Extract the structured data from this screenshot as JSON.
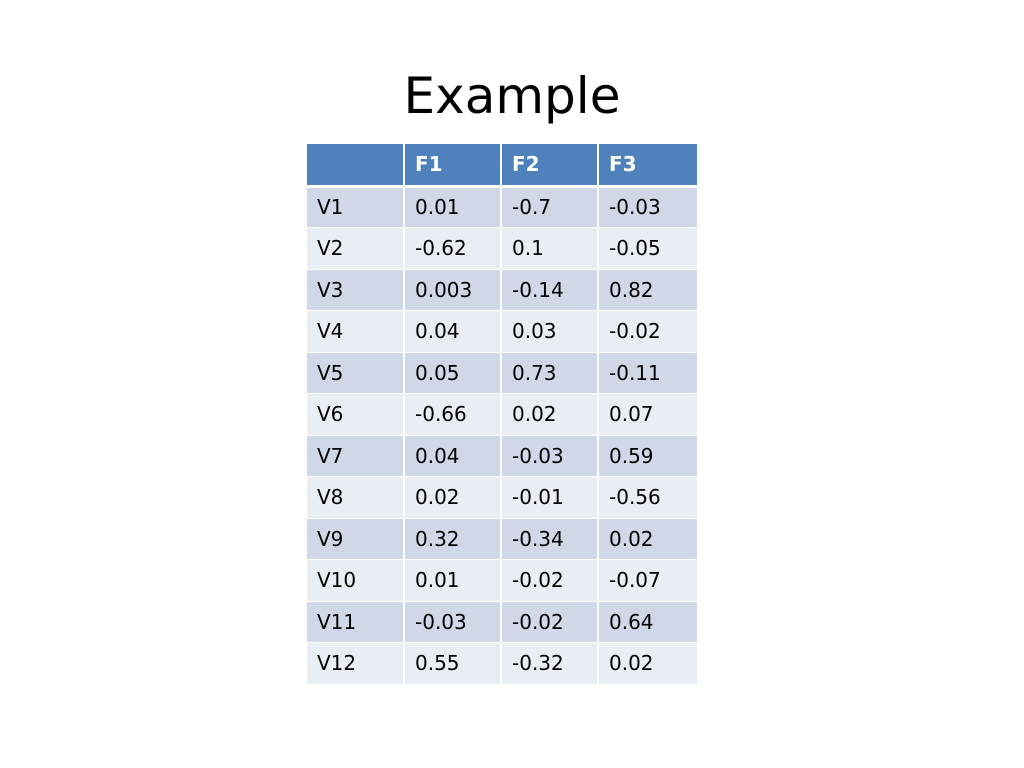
{
  "slide": {
    "title": "Example"
  },
  "table": {
    "headers": [
      "",
      "F1",
      "F2",
      "F3"
    ],
    "rows": [
      [
        "V1",
        "0.01",
        "-0.7",
        "-0.03"
      ],
      [
        "V2",
        "-0.62",
        "0.1",
        "-0.05"
      ],
      [
        "V3",
        "0.003",
        "-0.14",
        "0.82"
      ],
      [
        "V4",
        "0.04",
        "0.03",
        "-0.02"
      ],
      [
        "V5",
        "0.05",
        "0.73",
        "-0.11"
      ],
      [
        "V6",
        "-0.66",
        "0.02",
        "0.07"
      ],
      [
        "V7",
        "0.04",
        "-0.03",
        "0.59"
      ],
      [
        "V8",
        "0.02",
        "-0.01",
        "-0.56"
      ],
      [
        "V9",
        "0.32",
        "-0.34",
        "0.02"
      ],
      [
        "V10",
        "0.01",
        "-0.02",
        "-0.07"
      ],
      [
        "V11",
        "-0.03",
        "-0.02",
        "0.64"
      ],
      [
        "V12",
        "0.55",
        "-0.32",
        "0.02"
      ]
    ]
  },
  "colors": {
    "header_bg": "#4f81bd",
    "row_band_dark": "#d0d8e8",
    "row_band_light": "#e9edf4"
  }
}
